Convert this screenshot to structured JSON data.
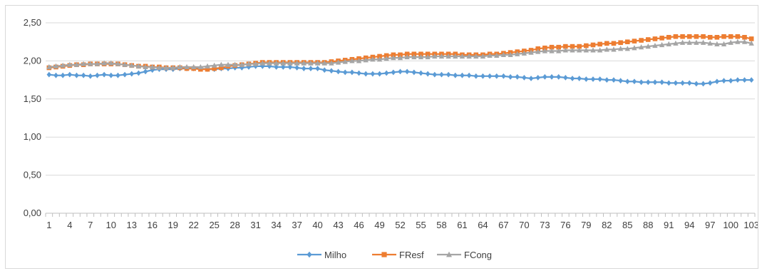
{
  "chart_data": {
    "type": "line",
    "title": "",
    "xlabel": "",
    "ylabel": "",
    "ylim": [
      0,
      2.5
    ],
    "yticks": [
      "0,00",
      "0,50",
      "1,00",
      "1,50",
      "2,00",
      "2,50"
    ],
    "x_tick_step": 3,
    "grid": "horizontal",
    "legend_position": "bottom",
    "series": [
      {
        "name": "Milho",
        "color": "#5b9bd5",
        "marker": "diamond",
        "values": [
          1.82,
          1.81,
          1.81,
          1.82,
          1.81,
          1.81,
          1.8,
          1.81,
          1.82,
          1.81,
          1.81,
          1.82,
          1.83,
          1.84,
          1.86,
          1.88,
          1.89,
          1.89,
          1.89,
          1.9,
          1.9,
          1.9,
          1.9,
          1.89,
          1.89,
          1.9,
          1.9,
          1.91,
          1.91,
          1.92,
          1.93,
          1.93,
          1.93,
          1.92,
          1.92,
          1.92,
          1.91,
          1.9,
          1.9,
          1.9,
          1.88,
          1.87,
          1.86,
          1.85,
          1.85,
          1.84,
          1.83,
          1.83,
          1.83,
          1.84,
          1.85,
          1.86,
          1.86,
          1.85,
          1.84,
          1.83,
          1.82,
          1.82,
          1.82,
          1.81,
          1.81,
          1.81,
          1.8,
          1.8,
          1.8,
          1.8,
          1.8,
          1.79,
          1.79,
          1.78,
          1.77,
          1.78,
          1.79,
          1.79,
          1.79,
          1.78,
          1.77,
          1.77,
          1.76,
          1.76,
          1.76,
          1.75,
          1.75,
          1.74,
          1.73,
          1.73,
          1.72,
          1.72,
          1.72,
          1.72,
          1.71,
          1.71,
          1.71,
          1.71,
          1.7,
          1.7,
          1.71,
          1.73,
          1.74,
          1.74,
          1.75,
          1.75,
          1.75
        ]
      },
      {
        "name": "FResf",
        "color": "#ed7d31",
        "marker": "square",
        "values": [
          1.91,
          1.92,
          1.93,
          1.94,
          1.95,
          1.95,
          1.96,
          1.96,
          1.96,
          1.96,
          1.96,
          1.95,
          1.94,
          1.93,
          1.93,
          1.92,
          1.92,
          1.91,
          1.91,
          1.91,
          1.9,
          1.9,
          1.89,
          1.89,
          1.9,
          1.91,
          1.93,
          1.94,
          1.95,
          1.96,
          1.97,
          1.98,
          1.98,
          1.98,
          1.98,
          1.98,
          1.98,
          1.98,
          1.98,
          1.98,
          1.98,
          1.99,
          2.0,
          2.01,
          2.02,
          2.03,
          2.04,
          2.05,
          2.06,
          2.07,
          2.08,
          2.08,
          2.09,
          2.09,
          2.09,
          2.09,
          2.09,
          2.09,
          2.09,
          2.09,
          2.08,
          2.08,
          2.08,
          2.08,
          2.09,
          2.09,
          2.1,
          2.11,
          2.12,
          2.13,
          2.14,
          2.16,
          2.17,
          2.18,
          2.18,
          2.19,
          2.19,
          2.19,
          2.2,
          2.21,
          2.22,
          2.23,
          2.23,
          2.24,
          2.25,
          2.26,
          2.27,
          2.28,
          2.29,
          2.3,
          2.31,
          2.32,
          2.32,
          2.32,
          2.32,
          2.32,
          2.31,
          2.31,
          2.32,
          2.32,
          2.32,
          2.31,
          2.29
        ]
      },
      {
        "name": "FCong",
        "color": "#a5a5a5",
        "marker": "triangle",
        "values": [
          1.92,
          1.93,
          1.94,
          1.95,
          1.95,
          1.96,
          1.96,
          1.96,
          1.97,
          1.97,
          1.96,
          1.95,
          1.94,
          1.93,
          1.92,
          1.92,
          1.91,
          1.91,
          1.91,
          1.92,
          1.92,
          1.92,
          1.92,
          1.93,
          1.94,
          1.95,
          1.95,
          1.95,
          1.95,
          1.96,
          1.96,
          1.97,
          1.97,
          1.97,
          1.97,
          1.97,
          1.97,
          1.97,
          1.97,
          1.97,
          1.97,
          1.97,
          1.98,
          1.99,
          2.0,
          2.0,
          2.01,
          2.02,
          2.02,
          2.03,
          2.04,
          2.04,
          2.05,
          2.05,
          2.05,
          2.05,
          2.06,
          2.06,
          2.06,
          2.06,
          2.06,
          2.06,
          2.06,
          2.06,
          2.07,
          2.07,
          2.08,
          2.08,
          2.09,
          2.1,
          2.11,
          2.12,
          2.13,
          2.13,
          2.13,
          2.14,
          2.14,
          2.14,
          2.14,
          2.14,
          2.14,
          2.15,
          2.15,
          2.16,
          2.16,
          2.17,
          2.18,
          2.19,
          2.2,
          2.21,
          2.22,
          2.23,
          2.24,
          2.24,
          2.24,
          2.24,
          2.23,
          2.22,
          2.22,
          2.24,
          2.25,
          2.25,
          2.23
        ]
      }
    ]
  }
}
